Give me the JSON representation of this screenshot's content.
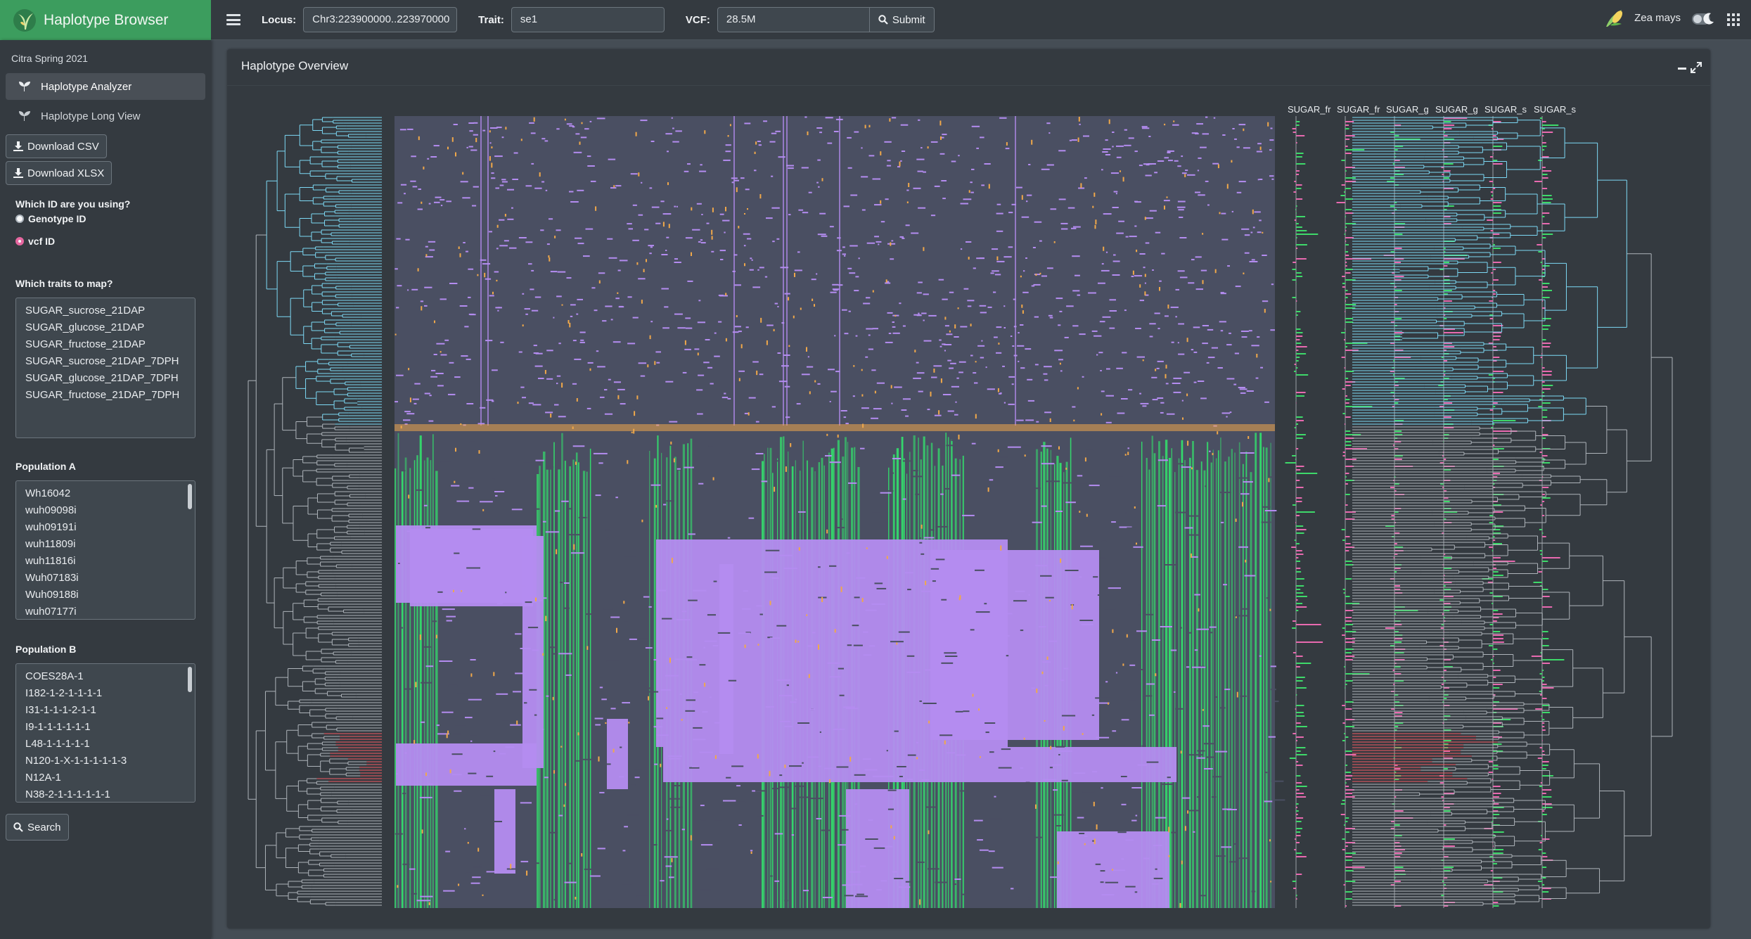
{
  "app": {
    "title": "Haplotype Browser"
  },
  "topbar": {
    "locus_label": "Locus:",
    "locus_value": "Chr3:223900000..223970000",
    "trait_label": "Trait:",
    "trait_value": "se1",
    "vcf_label": "VCF:",
    "vcf_value": "28.5M",
    "submit_label": "Submit",
    "species": "Zea mays"
  },
  "sidebar": {
    "section": "Citra Spring 2021",
    "nav": [
      {
        "label": "Haplotype Analyzer",
        "active": true
      },
      {
        "label": "Haplotype Long View",
        "active": false
      }
    ],
    "download_csv": "Download CSV",
    "download_xlsx": "Download XLSX",
    "id_question": "Which ID are you using?",
    "id_options": [
      "Genotype ID",
      "vcf ID"
    ],
    "id_selected": "vcf ID",
    "traits_heading": "Which traits to map?",
    "traits": [
      "SUGAR_sucrose_21DAP",
      "SUGAR_glucose_21DAP",
      "SUGAR_fructose_21DAP",
      "SUGAR_sucrose_21DAP_7DPH",
      "SUGAR_glucose_21DAP_7DPH",
      "SUGAR_fructose_21DAP_7DPH"
    ],
    "pop_a_heading": "Population A",
    "pop_a": [
      "Wh16042",
      "wuh09098i",
      "wuh09191i",
      "wuh11809i",
      "wuh11816i",
      "Wuh07183i",
      "Wuh09188i",
      "wuh07177i"
    ],
    "pop_b_heading": "Population B",
    "pop_b": [
      "COES28A-1",
      "I182-1-2-1-1-1-1",
      "I31-1-1-1-2-1-1",
      "I9-1-1-1-1-1-1",
      "L48-1-1-1-1-1",
      "N120-1-X-1-1-1-1-1-3",
      "N12A-1",
      "N38-2-1-1-1-1-1-1"
    ],
    "search_label": "Search"
  },
  "card": {
    "title": "Haplotype Overview",
    "trait_columns": [
      "SUGAR_fr",
      "SUGAR_fr",
      "SUGAR_g",
      "SUGAR_g",
      "SUGAR_s",
      "SUGAR_s"
    ]
  },
  "colors": {
    "brand": "#3c9d5e",
    "heatmap_bg": "#4a4f62",
    "variant_purple": "#b48cf0",
    "variant_green": "#34d96c",
    "variant_orange": "#f0a84a",
    "tree_highlight_cyan": "#7dd9f5",
    "tree_highlight_red": "#f25a62",
    "bar_pink": "#e86ab0",
    "bar_green": "#3ed96a"
  },
  "icons": [
    "logo-plant-icon",
    "menu-icon",
    "search-icon",
    "download-icon",
    "seedling-icon",
    "moon-icon",
    "apps-icon",
    "minimize-icon",
    "expand-icon"
  ]
}
